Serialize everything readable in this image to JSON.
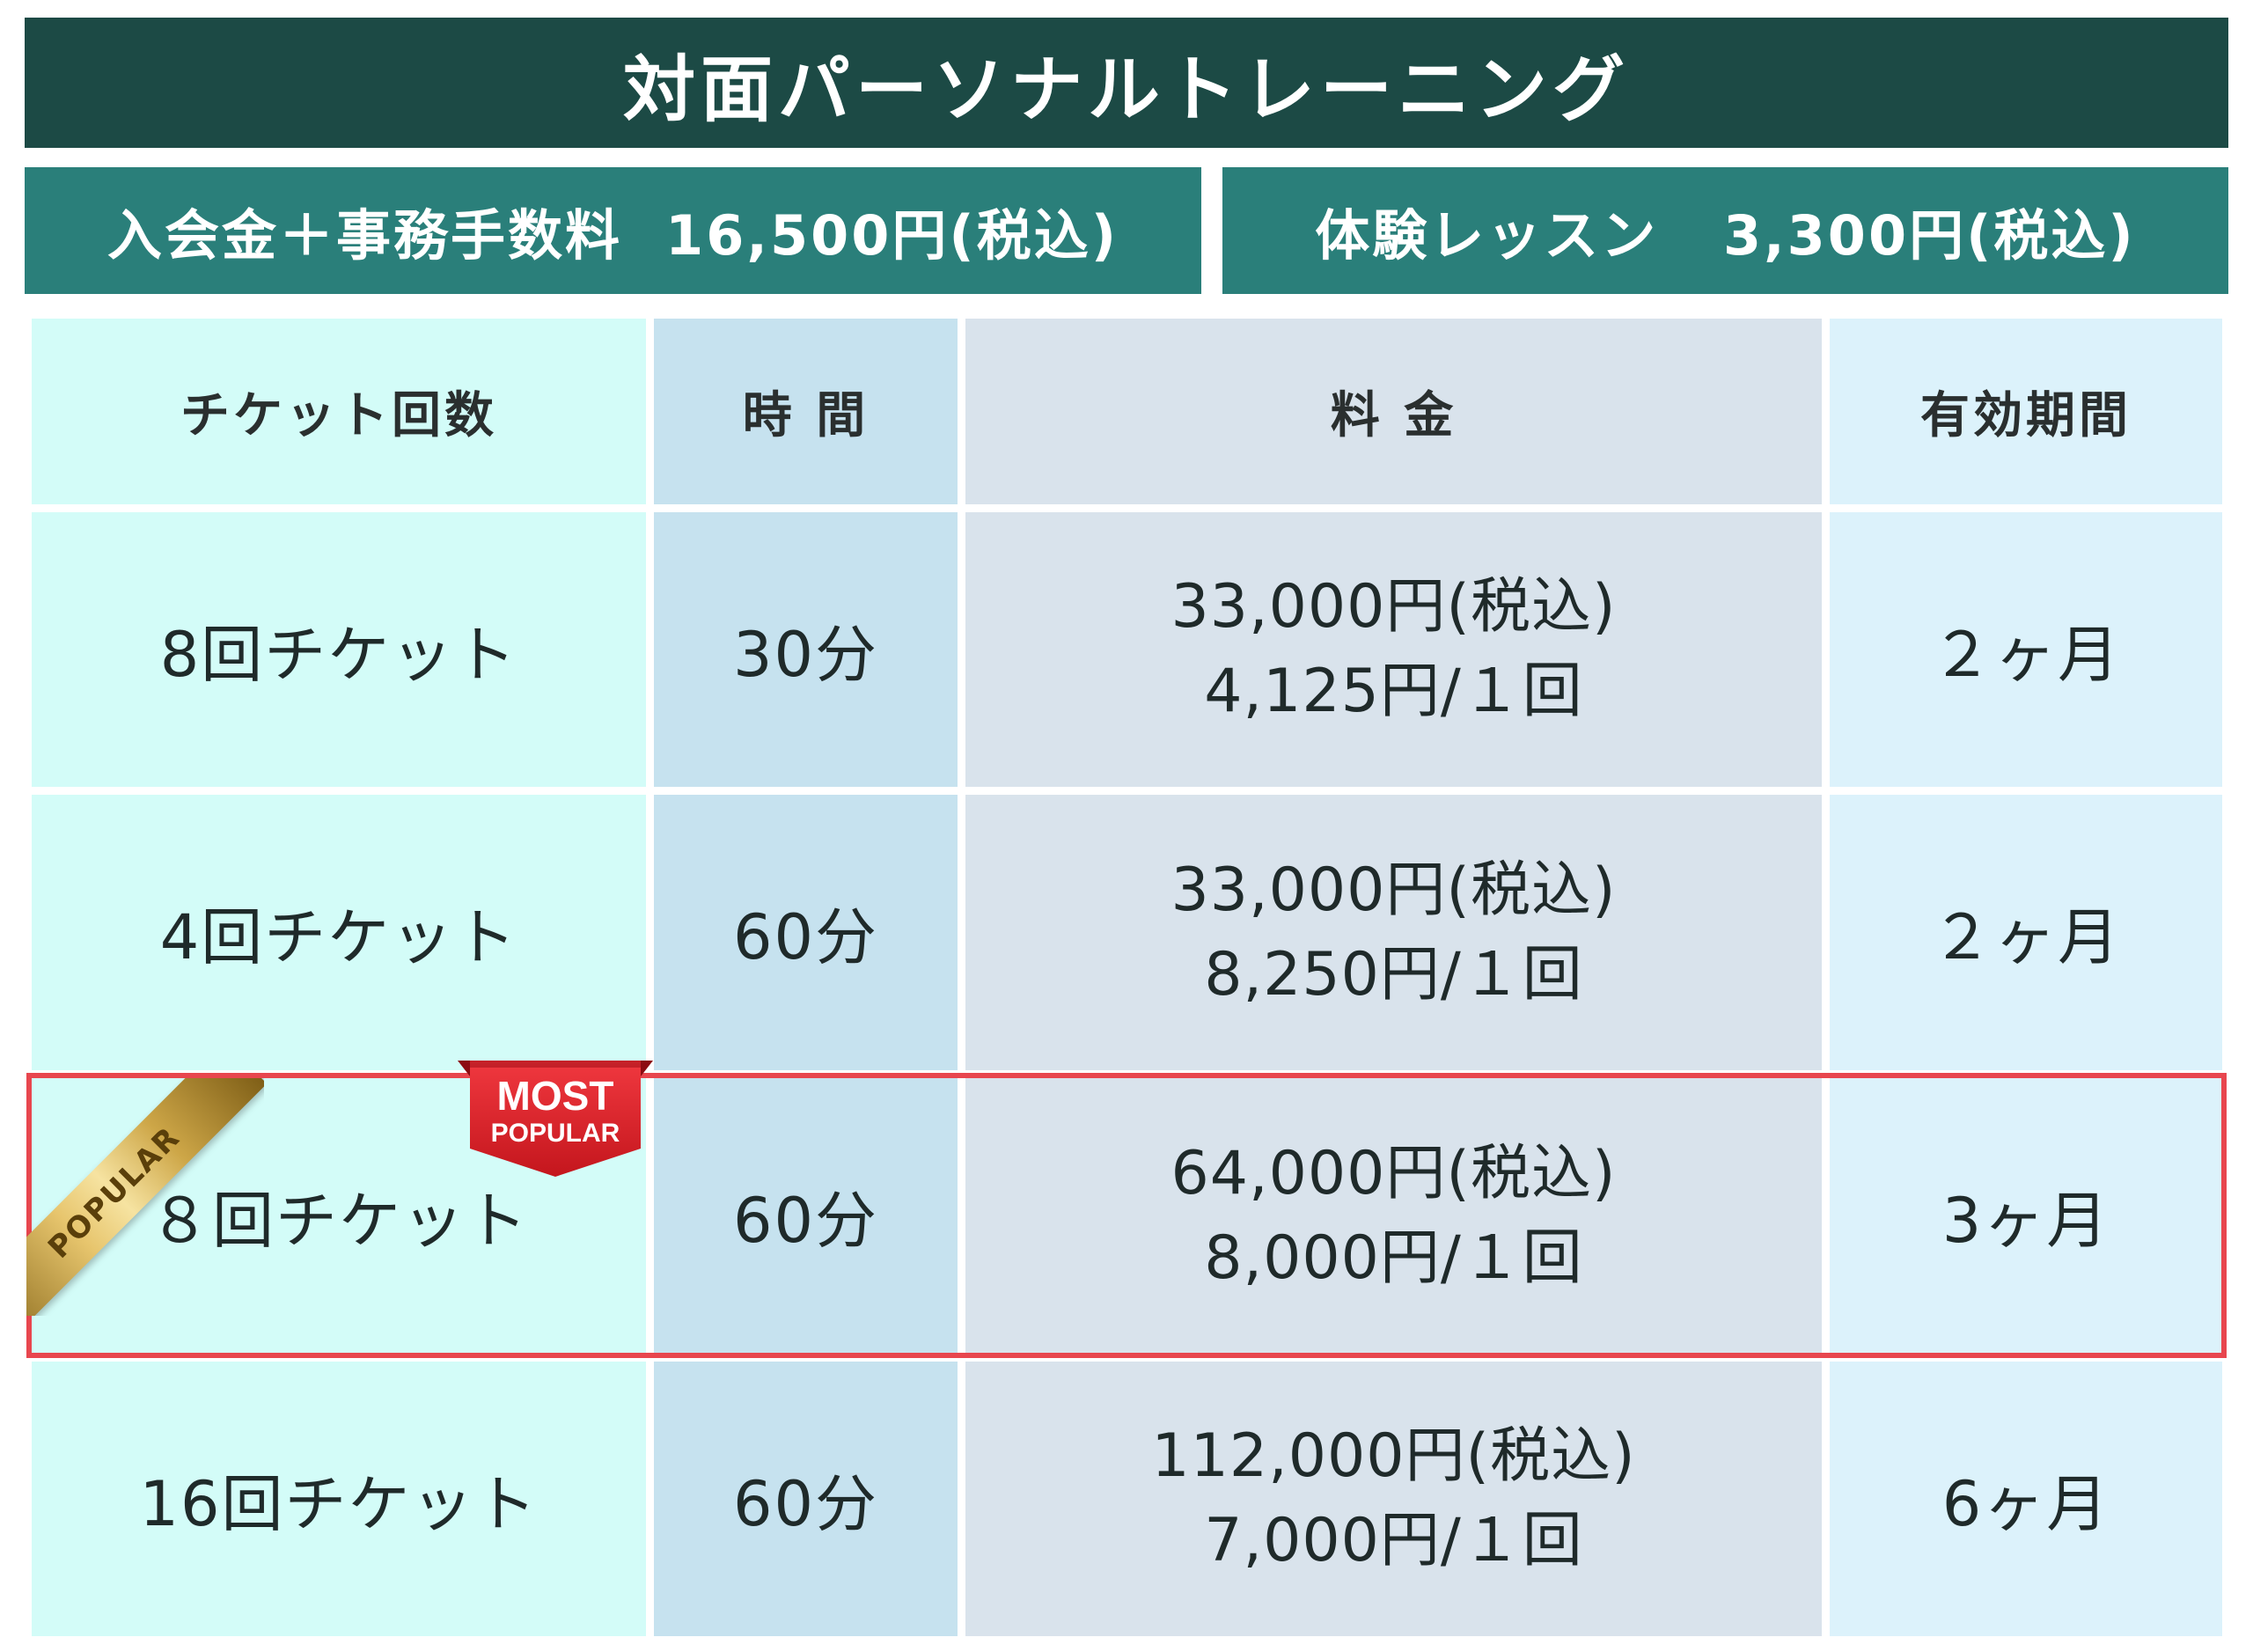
{
  "title": "対面パーソナルトレーニング",
  "fees": {
    "admission": "入会金＋事務手数料  16,500円(税込)",
    "trial": "体験レッスン   3,300円(税込)"
  },
  "table": {
    "headers": [
      "チケット回数",
      "時 間",
      "料 金",
      "有効期間"
    ],
    "rows": [
      {
        "ticket": "8回チケット",
        "time": "30分",
        "price": "33,000円(税込)",
        "per": "4,125円/１回",
        "valid": "２ヶ月"
      },
      {
        "ticket": "4回チケット",
        "time": "60分",
        "price": "33,000円(税込)",
        "per": "8,250円/１回",
        "valid": "２ヶ月"
      },
      {
        "ticket": "８回チケット",
        "time": "60分",
        "price": "64,000円(税込)",
        "per": "8,000円/１回",
        "valid": "3ヶ月"
      },
      {
        "ticket": "16回チケット",
        "time": "60分",
        "price": "112,000円(税込)",
        "per": "7,000円/１回",
        "valid": "6ヶ月"
      }
    ]
  },
  "badges": {
    "ribbon": "POPULAR",
    "most_line1": "MOST",
    "most_line2": "POPULAR"
  },
  "colors": {
    "title_bg": "#1c4a45",
    "fee_bg": "#2a7f7a",
    "highlight_border": "#e8464e",
    "badge_red": "#d71f26"
  }
}
